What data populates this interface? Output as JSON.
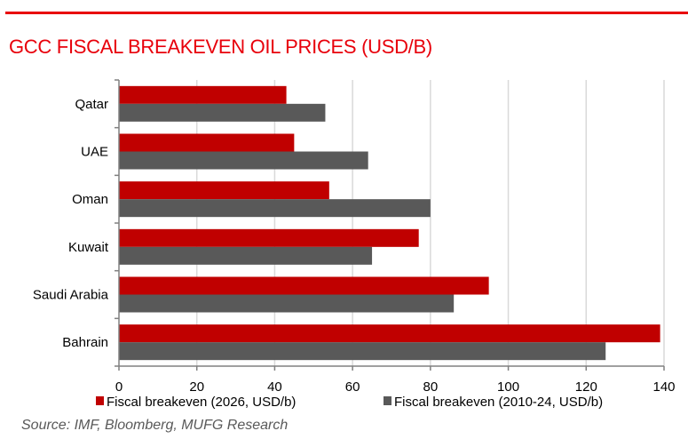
{
  "title": "GCC FISCAL BREAKEVEN OIL PRICES (USD/B)",
  "source": "Source: IMF, Bloomberg, MUFG Research",
  "colors": {
    "accent": "#e8000b",
    "series1": "#c00000",
    "series2": "#595959"
  },
  "chart_data": {
    "type": "bar",
    "orientation": "horizontal",
    "title": "GCC FISCAL BREAKEVEN OIL PRICES (USD/B)",
    "categories": [
      "Qatar",
      "UAE",
      "Oman",
      "Kuwait",
      "Saudi Arabia",
      "Bahrain"
    ],
    "series": [
      {
        "name": "Fiscal breakeven (2026, USD/b)",
        "values": [
          43,
          45,
          54,
          77,
          95,
          139
        ]
      },
      {
        "name": "Fiscal breakeven (2010-24, USD/b)",
        "values": [
          53,
          64,
          80,
          65,
          86,
          125
        ]
      }
    ],
    "xlim": [
      0,
      140
    ],
    "xticks": [
      "0",
      "20",
      "40",
      "60",
      "80",
      "100",
      "120",
      "140"
    ],
    "grid": true,
    "legend": "bottom"
  }
}
